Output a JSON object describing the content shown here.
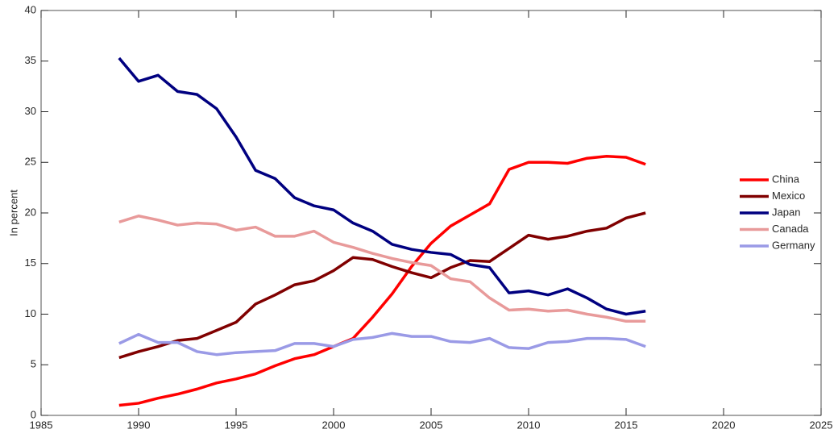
{
  "chart_data": {
    "type": "line",
    "y_label": "In percent",
    "x": [
      1989,
      1990,
      1991,
      1992,
      1993,
      1994,
      1995,
      1996,
      1997,
      1998,
      1999,
      2000,
      2001,
      2002,
      2003,
      2004,
      2005,
      2006,
      2007,
      2008,
      2009,
      2010,
      2011,
      2012,
      2013,
      2014,
      2015,
      2016
    ],
    "series": [
      {
        "name": "China",
        "color": "#ff0000",
        "values": [
          1.0,
          1.2,
          1.7,
          2.1,
          2.6,
          3.2,
          3.6,
          4.1,
          4.9,
          5.6,
          6.0,
          6.8,
          7.6,
          9.7,
          12.0,
          14.7,
          17.0,
          18.7,
          19.8,
          20.9,
          24.3,
          25.0,
          25.0,
          24.9,
          25.4,
          25.6,
          25.5,
          24.8
        ]
      },
      {
        "name": "Mexico",
        "color": "#800000",
        "values": [
          5.7,
          6.3,
          6.8,
          7.4,
          7.6,
          8.4,
          9.2,
          11.0,
          11.9,
          12.9,
          13.3,
          14.3,
          15.6,
          15.4,
          14.7,
          14.1,
          13.6,
          14.6,
          15.3,
          15.2,
          16.5,
          17.8,
          17.4,
          17.7,
          18.2,
          18.5,
          19.5,
          20.0
        ]
      },
      {
        "name": "Japan",
        "color": "#000080",
        "values": [
          35.3,
          33.0,
          33.6,
          32.0,
          31.7,
          30.3,
          27.5,
          24.2,
          23.4,
          21.5,
          20.7,
          20.3,
          19.0,
          18.2,
          16.9,
          16.4,
          16.1,
          15.9,
          14.9,
          14.6,
          12.1,
          12.3,
          11.9,
          12.5,
          11.6,
          10.5,
          10.0,
          10.3
        ]
      },
      {
        "name": "Canada",
        "color": "#e89a9a",
        "values": [
          19.1,
          19.7,
          19.3,
          18.8,
          19.0,
          18.9,
          18.3,
          18.6,
          17.7,
          17.7,
          18.2,
          17.1,
          16.6,
          16.0,
          15.5,
          15.1,
          14.8,
          13.5,
          13.2,
          11.6,
          10.4,
          10.5,
          10.3,
          10.4,
          10.0,
          9.7,
          9.3,
          9.3
        ]
      },
      {
        "name": "Germany",
        "color": "#9a9ae6",
        "values": [
          7.1,
          8.0,
          7.2,
          7.2,
          6.3,
          6.0,
          6.2,
          6.3,
          6.4,
          7.1,
          7.1,
          6.8,
          7.5,
          7.7,
          8.1,
          7.8,
          7.8,
          7.3,
          7.2,
          7.6,
          6.7,
          6.6,
          7.2,
          7.3,
          7.6,
          7.6,
          7.5,
          6.8
        ]
      }
    ],
    "xlim": [
      1985,
      2025
    ],
    "xticks": [
      1985,
      1990,
      1995,
      2000,
      2005,
      2010,
      2015,
      2020,
      2025
    ],
    "ylim": [
      0,
      40
    ],
    "yticks": [
      0,
      5,
      10,
      15,
      20,
      25,
      30,
      35,
      40
    ],
    "grid": false,
    "legend": "right"
  }
}
